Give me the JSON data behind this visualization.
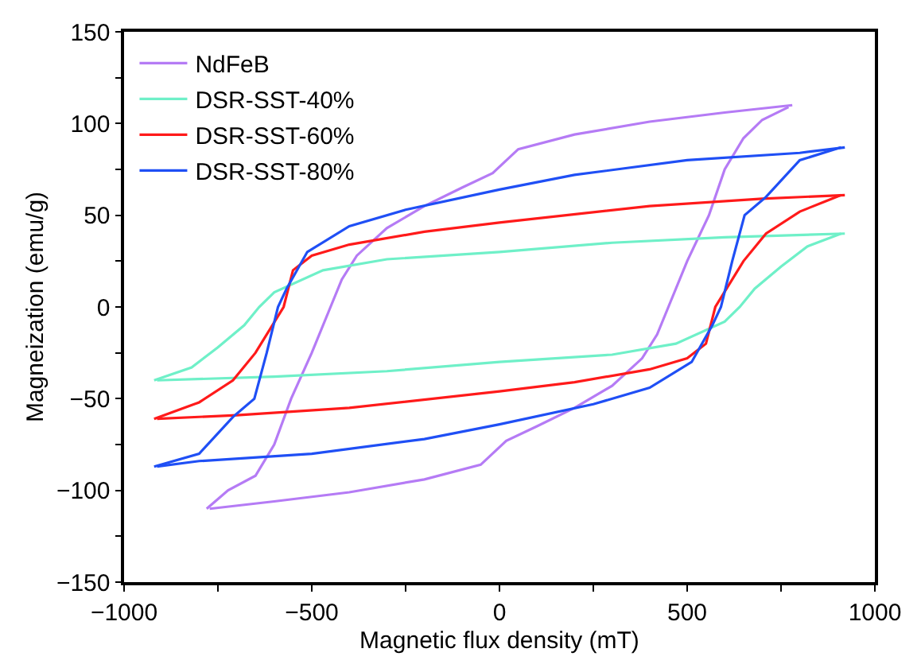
{
  "chart_data": {
    "type": "line",
    "xlabel": "Magnetic flux density (mT)",
    "ylabel": "Magneization (emu/g)",
    "xlim": [
      -1000,
      1000
    ],
    "ylim": [
      -150,
      150
    ],
    "xticks": [
      {
        "value": -1000,
        "label": "−1000"
      },
      {
        "value": -750,
        "label": null
      },
      {
        "value": -500,
        "label": "−500"
      },
      {
        "value": -250,
        "label": null
      },
      0,
      {
        "value": 250,
        "label": null
      },
      500,
      {
        "value": 750,
        "label": null
      },
      1000
    ],
    "yticks": [
      {
        "value": -150,
        "label": "−150"
      },
      {
        "value": -125,
        "label": null
      },
      {
        "value": -100,
        "label": "−100"
      },
      {
        "value": -75,
        "label": null
      },
      {
        "value": -50,
        "label": "−50"
      },
      {
        "value": -25,
        "label": null
      },
      0,
      {
        "value": 25,
        "label": null
      },
      50,
      {
        "value": 75,
        "label": null
      },
      100,
      {
        "value": 125,
        "label": null
      },
      150
    ],
    "legend": "top left",
    "marker": "none",
    "line_style": "solid",
    "series": [
      {
        "name": "NdFeB",
        "color": "#b57bf5",
        "x": [
          -780,
          -723,
          -650,
          -600,
          -555,
          -500,
          -450,
          -420,
          -380,
          -300,
          -200,
          -100,
          -18,
          50,
          200,
          400,
          600,
          780
        ],
        "values": [
          -110,
          -100,
          -92,
          -75,
          -50,
          -25,
          0,
          15,
          28,
          43,
          55,
          65,
          73,
          86,
          94,
          101,
          106,
          110
        ]
      },
      {
        "color": "#b57bf5",
        "x": [
          -772,
          -600,
          -400,
          -200,
          -50,
          18,
          100,
          200,
          300,
          380,
          420,
          450,
          500,
          558,
          600,
          650,
          700,
          770
        ],
        "values": [
          -110,
          -106,
          -101,
          -94,
          -86,
          -73,
          -65,
          -55,
          -43,
          -28,
          -15,
          0,
          25,
          50,
          75,
          92,
          102,
          109
        ]
      },
      {
        "name": "DSR-SST-40%",
        "color": "#6ff0c8",
        "x": [
          -920,
          -820,
          -750,
          -680,
          -640,
          -600,
          -470,
          -300,
          0,
          300,
          600,
          920
        ],
        "values": [
          -40,
          -33,
          -22,
          -10,
          0,
          8,
          20,
          26,
          30,
          35,
          38,
          40
        ]
      },
      {
        "color": "#6ff0c8",
        "x": [
          -912,
          -600,
          -300,
          0,
          300,
          470,
          600,
          640,
          680,
          750,
          820,
          910
        ],
        "values": [
          -40,
          -38,
          -35,
          -30,
          -26,
          -20,
          -8,
          0,
          10,
          22,
          33,
          40
        ]
      },
      {
        "name": "DSR-SST-60%",
        "color": "#ff1a1a",
        "x": [
          -920,
          -800,
          -710,
          -650,
          -575,
          -550,
          -500,
          -400,
          -200,
          0,
          400,
          700,
          920
        ],
        "values": [
          -61,
          -52,
          -40,
          -25,
          0,
          20,
          28,
          34,
          41,
          46,
          55,
          59,
          61
        ]
      },
      {
        "color": "#ff1a1a",
        "x": [
          -912,
          -700,
          -400,
          0,
          200,
          400,
          500,
          550,
          575,
          650,
          710,
          800,
          910
        ],
        "values": [
          -61,
          -59,
          -55,
          -46,
          -41,
          -34,
          -28,
          -20,
          0,
          25,
          40,
          52,
          61
        ]
      },
      {
        "name": "DSR-SST-80%",
        "color": "#1f4ff5",
        "x": [
          -920,
          -800,
          -710,
          -653,
          -620,
          -590,
          -567,
          -512,
          -400,
          -250,
          0,
          200,
          500,
          800,
          920
        ],
        "values": [
          -87,
          -80,
          -60,
          -50,
          -25,
          0,
          10,
          30,
          44,
          53,
          64,
          72,
          80,
          84,
          87
        ]
      },
      {
        "color": "#1f4ff5",
        "x": [
          -912,
          -800,
          -500,
          -200,
          0,
          250,
          400,
          512,
          567,
          590,
          620,
          653,
          710,
          800,
          910
        ],
        "values": [
          -87,
          -84,
          -80,
          -72,
          -64,
          -53,
          -44,
          -30,
          -10,
          0,
          25,
          50,
          60,
          80,
          87
        ]
      }
    ]
  }
}
